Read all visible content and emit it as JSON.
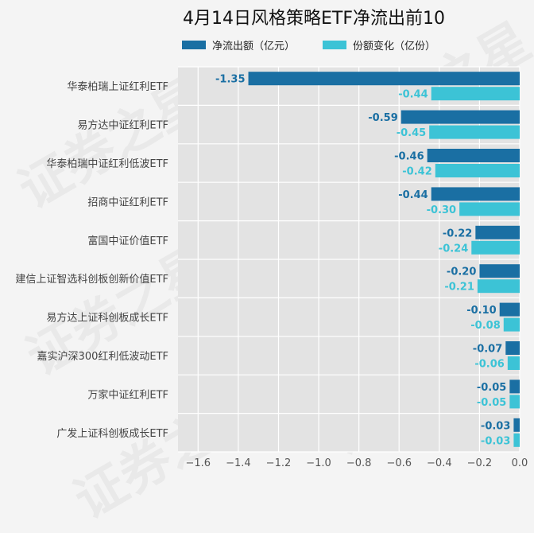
{
  "watermark": "证券之星",
  "chart_data": {
    "type": "bar",
    "orientation": "horizontal",
    "title": "4月14日风格策略ETF净流出前10",
    "categories": [
      "华泰柏瑞上证红利ETF",
      "易方达中证红利ETF",
      "华泰柏瑞中证红利低波ETF",
      "招商中证红利ETF",
      "富国中证价值ETF",
      "建信上证智选科创板创新价值ETF",
      "易方达上证科创板成长ETF",
      "嘉实沪深300红利低波动ETF",
      "万家中证红利ETF",
      "广发上证科创板成长ETF"
    ],
    "series": [
      {
        "name": "净流出额（亿元）",
        "color": "#1a6fa3",
        "label_color": "#1a6fa3",
        "values": [
          -1.35,
          -0.59,
          -0.46,
          -0.44,
          -0.22,
          -0.2,
          -0.1,
          -0.07,
          -0.05,
          -0.03
        ]
      },
      {
        "name": "份额变化（亿份）",
        "color": "#3cc3d6",
        "label_color": "#3cc3d6",
        "values": [
          -0.44,
          -0.45,
          -0.42,
          -0.3,
          -0.24,
          -0.21,
          -0.08,
          -0.06,
          -0.05,
          -0.03
        ]
      }
    ],
    "xlim": [
      -1.7,
      0.0
    ],
    "xticks": [
      -1.6,
      -1.4,
      -1.2,
      -1.0,
      -0.8,
      -0.6,
      -0.4,
      -0.2,
      0.0
    ],
    "xtick_labels": [
      "−1.6",
      "−1.4",
      "−1.2",
      "−1.0",
      "−0.8",
      "−0.6",
      "−0.4",
      "−0.2",
      "0.0"
    ],
    "grid": true,
    "legend_position": "top"
  }
}
